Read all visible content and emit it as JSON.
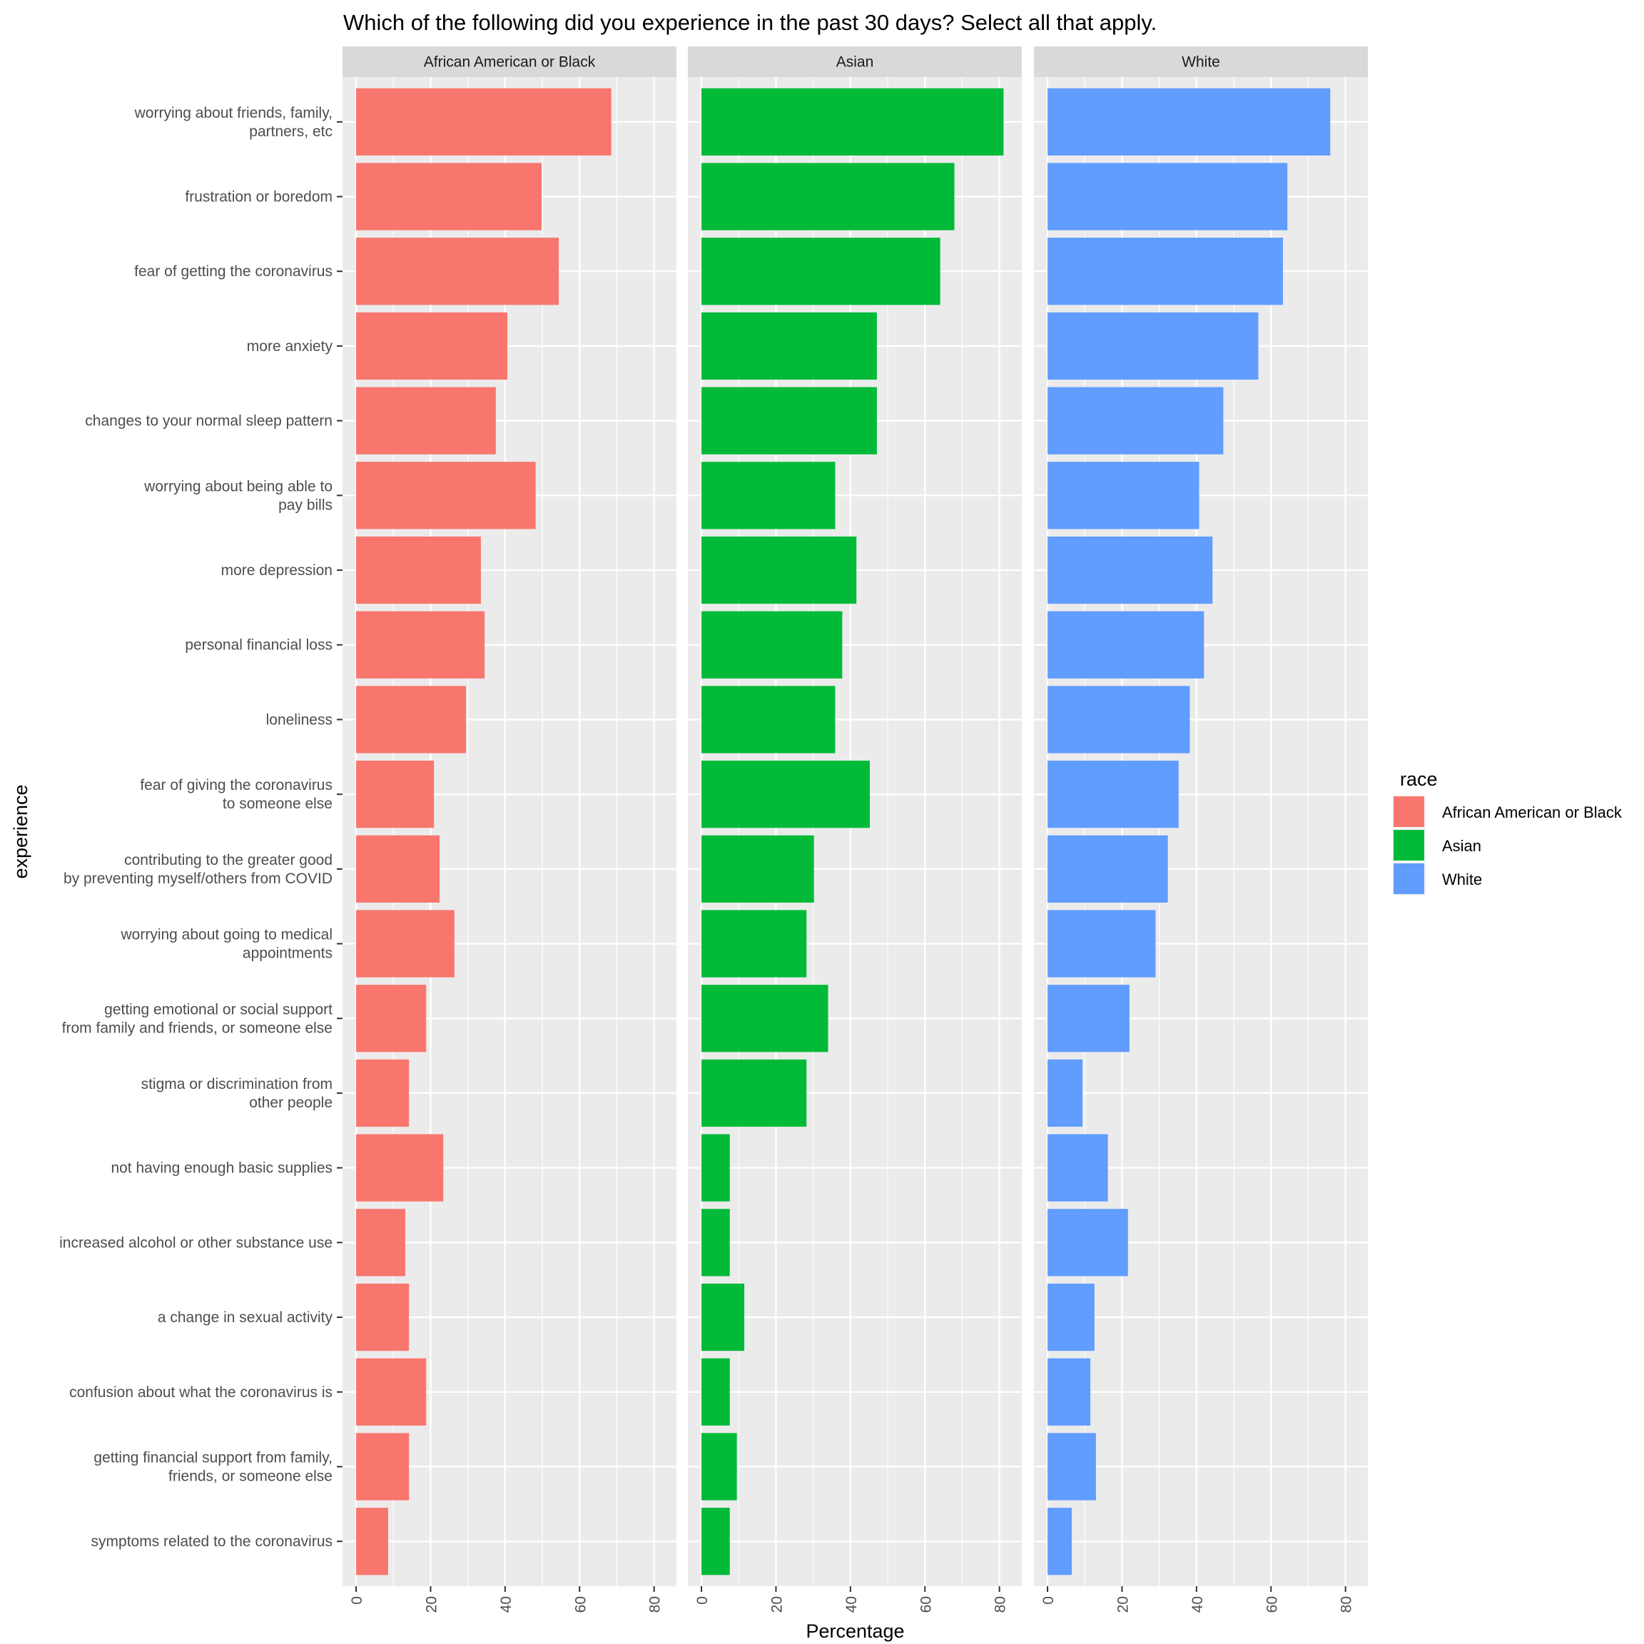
{
  "chart_data": {
    "type": "bar",
    "orientation": "horizontal",
    "faceted_by": "race",
    "title": "Which of the following did you experience in the past 30 days? Select all that apply.",
    "xlabel": "Percentage",
    "ylabel": "experience",
    "xlim": [
      0,
      80
    ],
    "x_ticks": [
      "0",
      "20",
      "40",
      "60",
      "80"
    ],
    "grid": true,
    "legend": {
      "title": "race",
      "position": "right",
      "items": [
        {
          "label": "African American or Black",
          "color": "#F8766D"
        },
        {
          "label": "Asian",
          "color": "#00BA38"
        },
        {
          "label": "White",
          "color": "#619CFF"
        }
      ]
    },
    "categories": [
      [
        "worrying about friends, family,",
        "partners, etc"
      ],
      [
        "frustration or boredom"
      ],
      [
        "fear of getting the coronavirus"
      ],
      [
        "more anxiety"
      ],
      [
        "changes to your normal sleep pattern"
      ],
      [
        "worrying about being able to",
        "pay bills"
      ],
      [
        "more depression"
      ],
      [
        "personal financial loss"
      ],
      [
        "loneliness"
      ],
      [
        "fear of giving the coronavirus",
        "to someone else"
      ],
      [
        "contributing to the greater good",
        "by preventing myself/others from COVID"
      ],
      [
        "worrying about going to medical",
        "appointments"
      ],
      [
        "getting emotional or social support",
        "from family and friends, or someone else"
      ],
      [
        "stigma or discrimination from",
        "other people"
      ],
      [
        "not having enough basic supplies"
      ],
      [
        "increased alcohol or other substance use"
      ],
      [
        "a change in sexual activity"
      ],
      [
        "confusion about what the coronavirus is"
      ],
      [
        "getting financial support from family,",
        "friends, or someone else"
      ],
      [
        "symptoms related to the coronavirus"
      ]
    ],
    "series": [
      {
        "name": "African American or Black",
        "color": "#F8766D",
        "values": [
          68.5,
          49.8,
          54.4,
          40.6,
          37.5,
          48.2,
          33.5,
          34.5,
          29.5,
          20.9,
          22.4,
          26.4,
          18.8,
          14.2,
          23.4,
          13.2,
          14.2,
          18.8,
          14.2,
          8.6
        ]
      },
      {
        "name": "Asian",
        "color": "#00BA38",
        "values": [
          81.1,
          67.9,
          64.1,
          47.1,
          47.1,
          35.9,
          41.6,
          37.8,
          35.9,
          45.2,
          30.2,
          28.2,
          34.0,
          28.2,
          7.6,
          7.6,
          11.5,
          7.6,
          9.5,
          7.6
        ]
      },
      {
        "name": "White",
        "color": "#619CFF",
        "values": [
          75.9,
          64.4,
          63.2,
          56.6,
          47.2,
          40.7,
          44.3,
          42.0,
          38.2,
          35.2,
          32.3,
          29.0,
          22.0,
          9.4,
          16.2,
          21.6,
          12.6,
          11.5,
          13.0,
          6.5
        ]
      }
    ]
  }
}
